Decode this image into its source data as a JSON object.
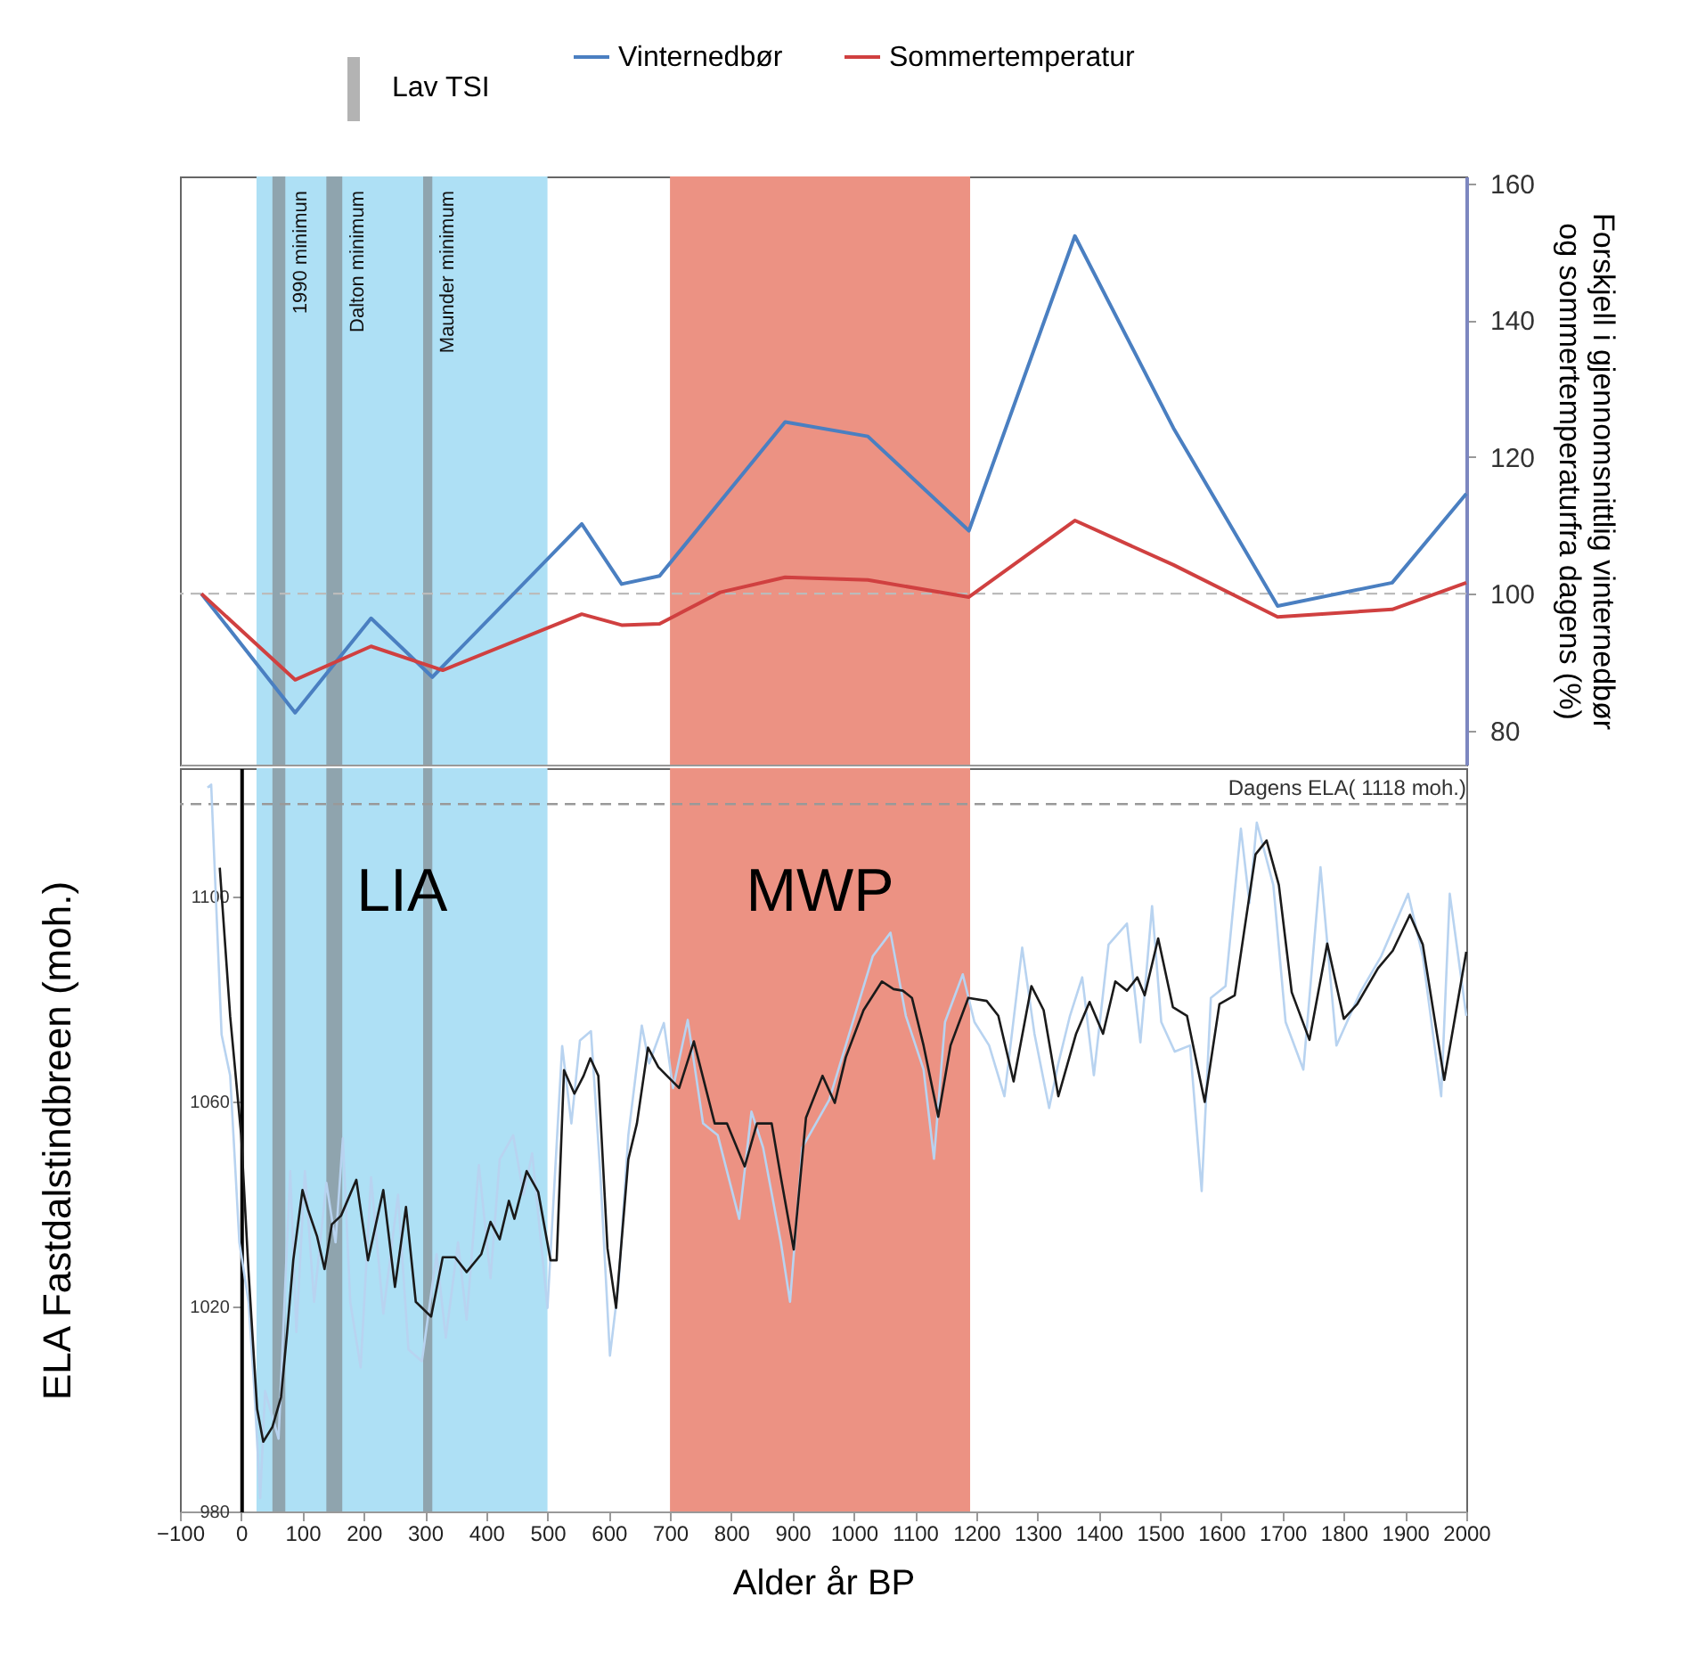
{
  "chart_data": [
    {
      "type": "line",
      "xlim": [
        -100,
        2000
      ],
      "y2lim": [
        75,
        161
      ],
      "y2ticks": [
        80,
        100,
        120,
        140,
        160
      ],
      "y2label": "Forskjell i gjennomsnittlig vinternedbør\nog sommertemperaturfra dagens (%)",
      "tick_labels": "y",
      "legend": "top",
      "annotations": [
        "Lav TSI"
      ],
      "ref_lines": [
        {
          "axis": "y2",
          "value": 100,
          "color": "#bbbbbb",
          "line_style": "dashed"
        }
      ],
      "bands": [
        {
          "axis": "x",
          "from": 25,
          "to": 500,
          "color": "#aee0f5"
        },
        {
          "axis": "x",
          "from": 700,
          "to": 1190,
          "color": "#ec9283"
        },
        {
          "axis": "x",
          "from": 51,
          "to": 72,
          "label": "1990 minimun",
          "color": "#8fa4ae"
        },
        {
          "axis": "x",
          "from": 139,
          "to": 165,
          "label": "Dalton minimum",
          "color": "#8fa4ae"
        },
        {
          "axis": "x",
          "from": 297,
          "to": 312,
          "label": "Maunder minimum",
          "color": "#8fa4ae"
        }
      ],
      "series": [
        {
          "name": "Vinternedbør",
          "color": "#4a7fc1",
          "axis": "y2",
          "x": [
            -65,
            88,
            212,
            312,
            556,
            621,
            683,
            888,
            1023,
            1188,
            1361,
            1522,
            1692,
            1879,
            2000
          ],
          "values": [
            100,
            82.6,
            96.4,
            87.8,
            110.2,
            101.4,
            102.6,
            125.1,
            123,
            109.2,
            152.3,
            124.2,
            98.2,
            101.6,
            114.6
          ]
        },
        {
          "name": "Sommertemperatur",
          "color": "#d04040",
          "axis": "y2",
          "x": [
            -65,
            88,
            212,
            329,
            556,
            621,
            683,
            782,
            888,
            1023,
            1188,
            1361,
            1522,
            1692,
            1879,
            2000
          ],
          "values": [
            100,
            87.4,
            92.3,
            88.8,
            97,
            95.4,
            95.6,
            100.2,
            102.4,
            102,
            99.5,
            110.7,
            104.2,
            96.6,
            97.7,
            101.6
          ]
        }
      ]
    },
    {
      "type": "line",
      "xlim": [
        -100,
        2000
      ],
      "xticks": [
        -100,
        0,
        100,
        200,
        300,
        400,
        500,
        600,
        700,
        800,
        900,
        1000,
        1100,
        1200,
        1300,
        1400,
        1500,
        1600,
        1700,
        1800,
        1900,
        2000
      ],
      "ylim": [
        980,
        1125
      ],
      "yticks": [
        980,
        1020,
        1060,
        1100
      ],
      "xlabel": "Alder år BP",
      "ylabel": "ELA Fastdalstindbreen (moh.)",
      "ref_lines": [
        {
          "axis": "y",
          "value": 1118,
          "label": "Dagens ELA( 1118 moh.)",
          "color": "#999999",
          "line_style": "dashed"
        }
      ],
      "bands": [
        {
          "axis": "x",
          "from": 25,
          "to": 500,
          "label": "LIA",
          "color": "#aee0f5"
        },
        {
          "axis": "x",
          "from": 700,
          "to": 1190,
          "label": "MWP",
          "color": "#ec9283"
        },
        {
          "axis": "x",
          "from": 51,
          "to": 72,
          "color": "#8fa4ae"
        },
        {
          "axis": "x",
          "from": 139,
          "to": 165,
          "color": "#8fa4ae"
        },
        {
          "axis": "x",
          "from": 297,
          "to": 312,
          "color": "#8fa4ae"
        }
      ],
      "series": [
        {
          "color": "#b8d3f0",
          "x": [
            -55,
            -49,
            -32,
            -18,
            -3,
            12,
            21,
            31,
            39,
            61,
            80,
            90,
            104,
            119,
            139,
            154,
            166,
            178,
            195,
            212,
            232,
            256,
            273,
            295,
            319,
            334,
            354,
            368,
            388,
            407,
            422,
            444,
            461,
            475,
            500,
            524,
            539,
            553,
            571,
            586,
            602,
            616,
            632,
            654,
            666,
            690,
            705,
            729,
            754,
            778,
            813,
            833,
            852,
            881,
            896,
            916,
            960,
            1031,
            1060,
            1085,
            1114,
            1131,
            1149,
            1178,
            1197,
            1221,
            1246,
            1275,
            1295,
            1319,
            1334,
            1353,
            1373,
            1392,
            1416,
            1446,
            1468,
            1487,
            1502,
            1524,
            1549,
            1568,
            1583,
            1607,
            1632,
            1646,
            1658,
            1685,
            1705,
            1734,
            1762,
            1788,
            1827,
            1861,
            1905,
            1929,
            1959,
            1973,
            2000
          ],
          "values": [
            1121.2,
            1121.8,
            1073,
            1065,
            1032.5,
            1020.9,
            1004.6,
            982.6,
            1003.5,
            994.2,
            1046.4,
            1015,
            1046.4,
            1020.9,
            1044.1,
            1032.5,
            1052.8,
            1020.9,
            1008.1,
            1045.2,
            1018.6,
            1041.8,
            1011.6,
            1009.3,
            1030.2,
            1013.9,
            1032.5,
            1017.4,
            1047.6,
            1025.5,
            1048.7,
            1053.4,
            1041.8,
            1049.9,
            1019.7,
            1070.8,
            1055.7,
            1071.9,
            1073.7,
            1046.4,
            1010.4,
            1024.4,
            1053.4,
            1074.8,
            1067.4,
            1075.3,
            1062.6,
            1075.9,
            1055.7,
            1053.4,
            1037.1,
            1058,
            1051,
            1032.5,
            1020.9,
            1051,
            1060.3,
            1088.3,
            1092.9,
            1076.7,
            1066.2,
            1048.8,
            1075.5,
            1084.8,
            1075.5,
            1070.9,
            1061,
            1090,
            1073.2,
            1058.7,
            1067.4,
            1076.7,
            1084.2,
            1065.1,
            1090.6,
            1094.7,
            1071.5,
            1098.1,
            1075.5,
            1069.7,
            1070.9,
            1042.5,
            1080.2,
            1082.5,
            1113.2,
            1098.7,
            1114.4,
            1102.2,
            1075.5,
            1066.2,
            1105.7,
            1070.9,
            1081.3,
            1088.3,
            1100.5,
            1088.3,
            1061,
            1100.5,
            1076.7
          ]
        },
        {
          "color": "#1a1a1a",
          "x": [
            -35,
            -18,
            0,
            12,
            26,
            36,
            51,
            65,
            75,
            85,
            100,
            109,
            124,
            136,
            148,
            163,
            188,
            207,
            232,
            251,
            269,
            285,
            310,
            329,
            349,
            368,
            392,
            407,
            422,
            437,
            446,
            466,
            485,
            505,
            515,
            527,
            544,
            559,
            570,
            583,
            598,
            612,
            632,
            646,
            664,
            681,
            695,
            715,
            739,
            773,
            793,
            822,
            842,
            866,
            881,
            902,
            922,
            949,
            969,
            987,
            1016,
            1046,
            1065,
            1080,
            1095,
            1114,
            1138,
            1158,
            1187,
            1217,
            1236,
            1261,
            1290,
            1310,
            1334,
            1363,
            1385,
            1407,
            1427,
            1446,
            1463,
            1475,
            1497,
            1521,
            1544,
            1573,
            1597,
            1622,
            1637,
            1656,
            1674,
            1694,
            1715,
            1744,
            1773,
            1800,
            1822,
            1856,
            1880,
            1908,
            1929,
            1964,
            2000
          ],
          "values": [
            1105.6,
            1076.6,
            1053.4,
            1026.7,
            1000,
            993.6,
            996.5,
            1002.3,
            1015,
            1029,
            1042.7,
            1038.9,
            1033.6,
            1027.3,
            1036,
            1037.7,
            1044.7,
            1029,
            1042.7,
            1023.8,
            1039.4,
            1020.9,
            1018,
            1029.6,
            1029.6,
            1026.7,
            1030.2,
            1036.5,
            1033.1,
            1040.6,
            1037.1,
            1046.4,
            1042.3,
            1029,
            1029,
            1066.1,
            1061.5,
            1065,
            1068.4,
            1065,
            1031.3,
            1019.7,
            1048.7,
            1055.7,
            1070.5,
            1066.7,
            1065,
            1062.6,
            1071.7,
            1055.7,
            1055.7,
            1047.3,
            1055.7,
            1055.7,
            1045.2,
            1031.1,
            1056.8,
            1065,
            1059.7,
            1068.6,
            1077.8,
            1083.4,
            1081.9,
            1081.6,
            1080.2,
            1070.9,
            1057,
            1070.9,
            1080.2,
            1079.6,
            1076.7,
            1063.9,
            1082.5,
            1077.8,
            1061,
            1073.2,
            1079.4,
            1073.2,
            1083.4,
            1081.6,
            1084.2,
            1080.7,
            1091.8,
            1078.4,
            1076.7,
            1059.9,
            1079,
            1080.7,
            1092.9,
            1108.2,
            1110.9,
            1102.2,
            1081.3,
            1072,
            1090.8,
            1076.1,
            1079,
            1086,
            1089.4,
            1096.4,
            1090.6,
            1064.2,
            1089.2
          ]
        }
      ]
    }
  ]
}
